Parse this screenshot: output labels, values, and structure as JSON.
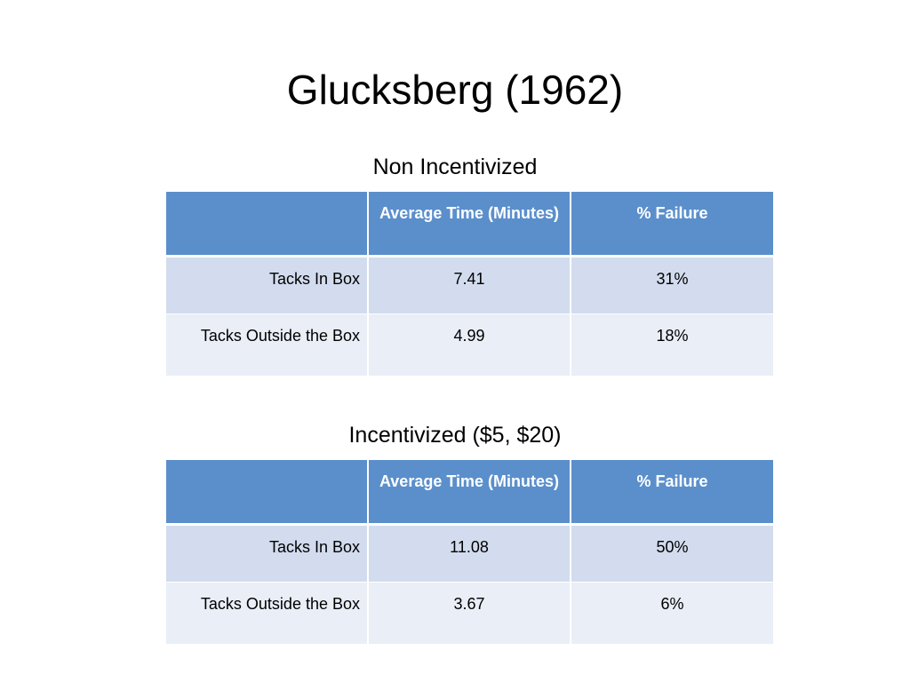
{
  "slide": {
    "title": "Glucksberg (1962)"
  },
  "tables": [
    {
      "title": "Non Incentivized",
      "headers": [
        "",
        "Average Time (Minutes)",
        "% Failure"
      ],
      "rows": [
        [
          "Tacks In Box",
          "7.41",
          "31%"
        ],
        [
          "Tacks Outside the Box",
          "4.99",
          "18%"
        ]
      ]
    },
    {
      "title": "Incentivized ($5, $20)",
      "headers": [
        "",
        "Average Time (Minutes)",
        "% Failure"
      ],
      "rows": [
        [
          "Tacks In Box",
          "11.08",
          "50%"
        ],
        [
          "Tacks Outside the Box",
          "3.67",
          "6%"
        ]
      ]
    }
  ],
  "colors": {
    "header_bg": "#5b8fcb",
    "row_odd_bg": "#d2dcee",
    "row_even_bg": "#e9eef7"
  }
}
